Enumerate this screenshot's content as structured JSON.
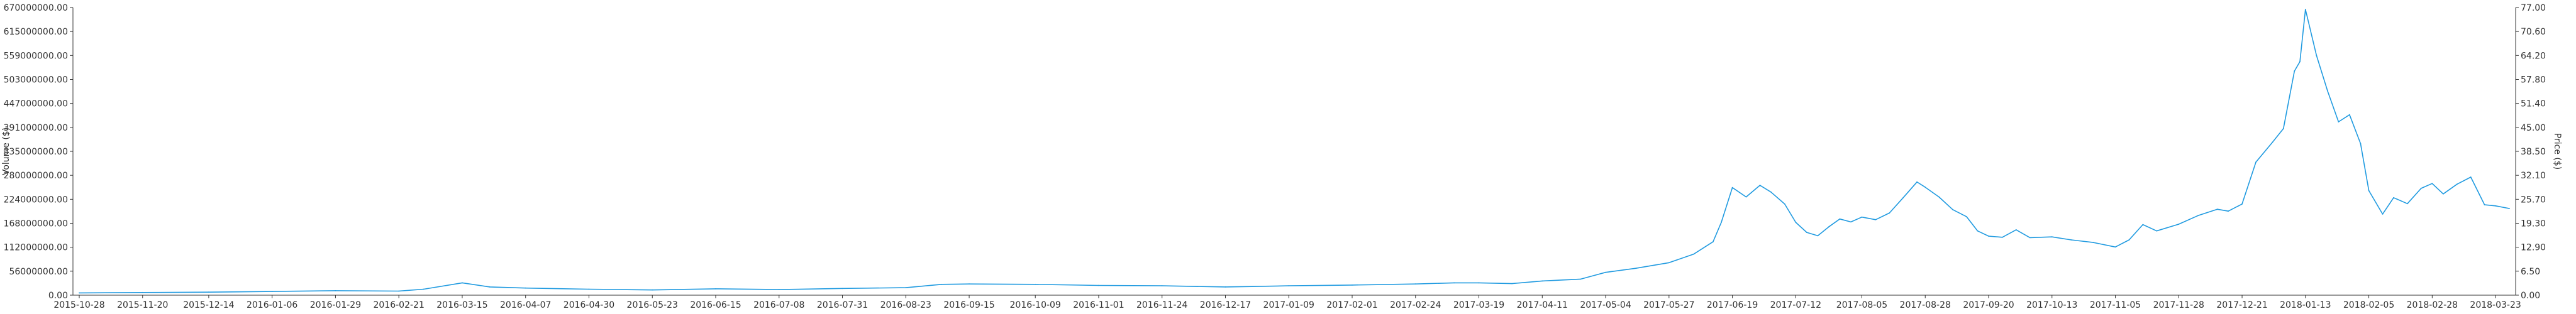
{
  "chart_data": {
    "type": "line",
    "title": "",
    "colors": {
      "series": "#1f9ae0",
      "axis": "#333333"
    },
    "grid": false,
    "xlabel": "",
    "ylabel_left": "Volume ($)",
    "ylabel_right": "Price ($)",
    "x_ticks": [
      "2015-10-28",
      "2015-11-20",
      "2015-12-14",
      "2016-01-06",
      "2016-01-29",
      "2016-02-21",
      "2016-03-15",
      "2016-04-07",
      "2016-04-30",
      "2016-05-23",
      "2016-06-15",
      "2016-07-08",
      "2016-07-31",
      "2016-08-23",
      "2016-09-15",
      "2016-10-09",
      "2016-11-01",
      "2016-11-24",
      "2016-12-17",
      "2017-01-09",
      "2017-02-01",
      "2017-02-24",
      "2017-03-19",
      "2017-04-11",
      "2017-05-04",
      "2017-05-27",
      "2017-06-19",
      "2017-07-12",
      "2017-08-05",
      "2017-08-28",
      "2017-09-20",
      "2017-10-13",
      "2017-11-05",
      "2017-11-28",
      "2017-12-21",
      "2018-01-13",
      "2018-02-05",
      "2018-02-28",
      "2018-03-23"
    ],
    "y_left_ticks": [
      "0.00",
      "56000000.00",
      "112000000.00",
      "168000000.00",
      "224000000.00",
      "280000000.00",
      "335000000.00",
      "391000000.00",
      "447000000.00",
      "503000000.00",
      "559000000.00",
      "615000000.00",
      "670000000.00"
    ],
    "y_right_ticks": [
      "0.00",
      "6.50",
      "12.90",
      "19.30",
      "25.70",
      "32.10",
      "38.50",
      "45.00",
      "51.40",
      "57.80",
      "64.20",
      "70.60",
      "77.00"
    ],
    "ylim_left": [
      0,
      670000000
    ],
    "ylim_right": [
      0,
      77
    ],
    "series": [
      {
        "axis": "right",
        "x": [
          "2015-10-28",
          "2015-11-20",
          "2015-12-14",
          "2016-01-06",
          "2016-01-29",
          "2016-02-21",
          "2016-03-01",
          "2016-03-15",
          "2016-03-25",
          "2016-04-07",
          "2016-04-30",
          "2016-05-23",
          "2016-06-15",
          "2016-07-08",
          "2016-07-31",
          "2016-08-23",
          "2016-09-05",
          "2016-09-15",
          "2016-10-09",
          "2016-11-01",
          "2016-11-24",
          "2016-12-17",
          "2017-01-09",
          "2017-02-01",
          "2017-02-24",
          "2017-03-10",
          "2017-03-19",
          "2017-03-31",
          "2017-04-11",
          "2017-04-25",
          "2017-05-04",
          "2017-05-15",
          "2017-05-27",
          "2017-06-05",
          "2017-06-12",
          "2017-06-15",
          "2017-06-19",
          "2017-06-24",
          "2017-06-29",
          "2017-07-03",
          "2017-07-08",
          "2017-07-12",
          "2017-07-16",
          "2017-07-20",
          "2017-07-24",
          "2017-07-28",
          "2017-08-01",
          "2017-08-05",
          "2017-08-10",
          "2017-08-15",
          "2017-08-20",
          "2017-08-25",
          "2017-08-28",
          "2017-09-02",
          "2017-09-07",
          "2017-09-12",
          "2017-09-16",
          "2017-09-20",
          "2017-09-25",
          "2017-09-30",
          "2017-10-05",
          "2017-10-13",
          "2017-10-20",
          "2017-10-28",
          "2017-11-05",
          "2017-11-10",
          "2017-11-15",
          "2017-11-20",
          "2017-11-28",
          "2017-12-05",
          "2017-12-12",
          "2017-12-16",
          "2017-12-21",
          "2017-12-26",
          "2018-01-01",
          "2018-01-05",
          "2018-01-09",
          "2018-01-11",
          "2018-01-13",
          "2018-01-17",
          "2018-01-21",
          "2018-01-25",
          "2018-01-29",
          "2018-02-02",
          "2018-02-05",
          "2018-02-10",
          "2018-02-14",
          "2018-02-19",
          "2018-02-24",
          "2018-02-28",
          "2018-03-04",
          "2018-03-09",
          "2018-03-14",
          "2018-03-19",
          "2018-03-23",
          "2018-03-28"
        ],
        "values": [
          0.6,
          0.7,
          0.8,
          1.0,
          1.2,
          1.1,
          1.6,
          3.3,
          2.2,
          1.9,
          1.6,
          1.4,
          1.7,
          1.5,
          1.8,
          2.0,
          2.9,
          3.0,
          2.9,
          2.6,
          2.5,
          2.2,
          2.5,
          2.7,
          3.0,
          3.3,
          3.3,
          3.1,
          3.8,
          4.3,
          6.1,
          7.2,
          8.7,
          11.0,
          14.3,
          19.5,
          28.8,
          26.3,
          29.4,
          27.6,
          24.4,
          19.5,
          16.8,
          15.9,
          18.3,
          20.4,
          19.6,
          20.9,
          20.2,
          22.0,
          26.1,
          30.3,
          28.9,
          26.3,
          22.9,
          21.0,
          17.2,
          15.8,
          15.5,
          17.5,
          15.4,
          15.6,
          14.8,
          14.1,
          12.9,
          14.8,
          18.9,
          17.2,
          19.0,
          21.3,
          23.0,
          22.5,
          24.4,
          35.6,
          40.9,
          44.6,
          60.0,
          62.5,
          76.5,
          64.2,
          54.7,
          46.4,
          48.3,
          40.6,
          28.0,
          21.7,
          26.1,
          24.5,
          28.6,
          29.9,
          27.1,
          29.7,
          31.6,
          24.2,
          23.9,
          23.2
        ]
      }
    ]
  }
}
